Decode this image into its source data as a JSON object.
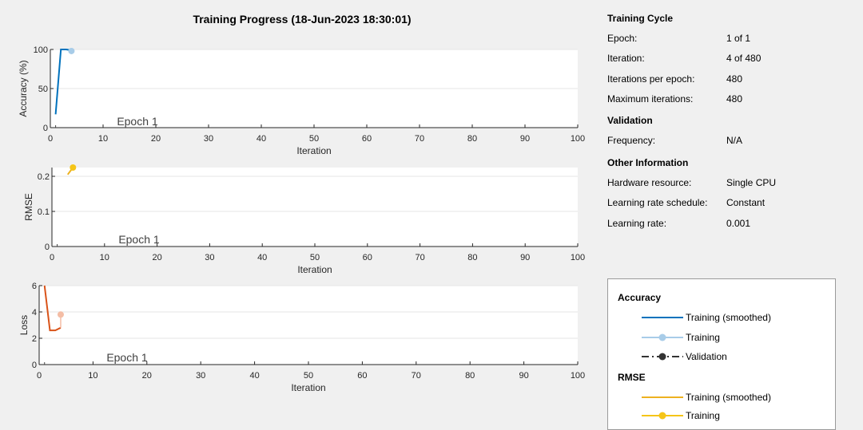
{
  "title": "Training Progress (18-Jun-2023 18:30:01)",
  "info": {
    "sections": [
      {
        "heading": "Training Cycle",
        "rows": [
          {
            "label": "Epoch:",
            "value": "1 of 1"
          },
          {
            "label": "Iteration:",
            "value": "4 of 480"
          },
          {
            "label": "Iterations per epoch:",
            "value": "480"
          },
          {
            "label": "Maximum iterations:",
            "value": "480"
          }
        ]
      },
      {
        "heading": "Validation",
        "rows": [
          {
            "label": "Frequency:",
            "value": "N/A"
          }
        ]
      },
      {
        "heading": "Other Information",
        "rows": [
          {
            "label": "Hardware resource:",
            "value": "Single CPU"
          },
          {
            "label": "Learning rate schedule:",
            "value": "Constant"
          },
          {
            "label": "Learning rate:",
            "value": "0.001"
          }
        ]
      }
    ]
  },
  "legend": {
    "accuracy_heading": "Accuracy",
    "accuracy_items": [
      "Training (smoothed)",
      "Training",
      "Validation"
    ],
    "rmse_heading": "RMSE",
    "rmse_items": [
      "Training (smoothed)",
      "Training"
    ]
  },
  "colors": {
    "accuracy_smoothed": "#0072bd",
    "accuracy_raw": "#a8cce8",
    "validation": "#333333",
    "rmse_smoothed": "#edb120",
    "rmse_raw": "#f5c518",
    "loss_smoothed": "#d95319",
    "loss_raw": "#f4bda5",
    "grid": "#e6e6e6"
  },
  "chart_data": [
    {
      "type": "line",
      "ylabel": "Accuracy (%)",
      "xlabel": "Iteration",
      "xlim": [
        0,
        100
      ],
      "ylim": [
        0,
        100
      ],
      "xticks": [
        0,
        10,
        20,
        30,
        40,
        50,
        60,
        70,
        80,
        90,
        100
      ],
      "yticks": [
        0,
        50,
        100
      ],
      "grid": true,
      "annotation": "Epoch 1",
      "series": [
        {
          "x": [
            1,
            2,
            3,
            4
          ],
          "y": [
            17,
            100,
            100,
            99
          ]
        },
        {
          "x": [
            4
          ],
          "y": [
            98
          ]
        }
      ]
    },
    {
      "type": "line",
      "ylabel": "RMSE",
      "xlabel": "Iteration",
      "xlim": [
        0,
        100
      ],
      "ylim": [
        0,
        0.225
      ],
      "xticks": [
        0,
        10,
        20,
        30,
        40,
        50,
        60,
        70,
        80,
        90,
        100
      ],
      "yticks": [
        0,
        0.1,
        0.2
      ],
      "ytick_labels": [
        "0",
        "0.1",
        "0.2"
      ],
      "grid": true,
      "annotation": "Epoch 1",
      "series": [
        {
          "x": [
            3,
            4
          ],
          "y": [
            0.205,
            0.225
          ]
        },
        {
          "x": [
            4
          ],
          "y": [
            0.225
          ]
        }
      ]
    },
    {
      "type": "line",
      "ylabel": "Loss",
      "xlabel": "Iteration",
      "xlim": [
        0,
        100
      ],
      "ylim": [
        0,
        6
      ],
      "xticks": [
        0,
        10,
        20,
        30,
        40,
        50,
        60,
        70,
        80,
        90,
        100
      ],
      "yticks": [
        0,
        2,
        4,
        6
      ],
      "grid": true,
      "annotation": "Epoch 1",
      "series": [
        {
          "x": [
            1,
            2,
            3,
            4
          ],
          "y": [
            6,
            2.6,
            2.6,
            2.8
          ]
        },
        {
          "x": [
            4
          ],
          "y": [
            3.8
          ]
        }
      ]
    }
  ]
}
